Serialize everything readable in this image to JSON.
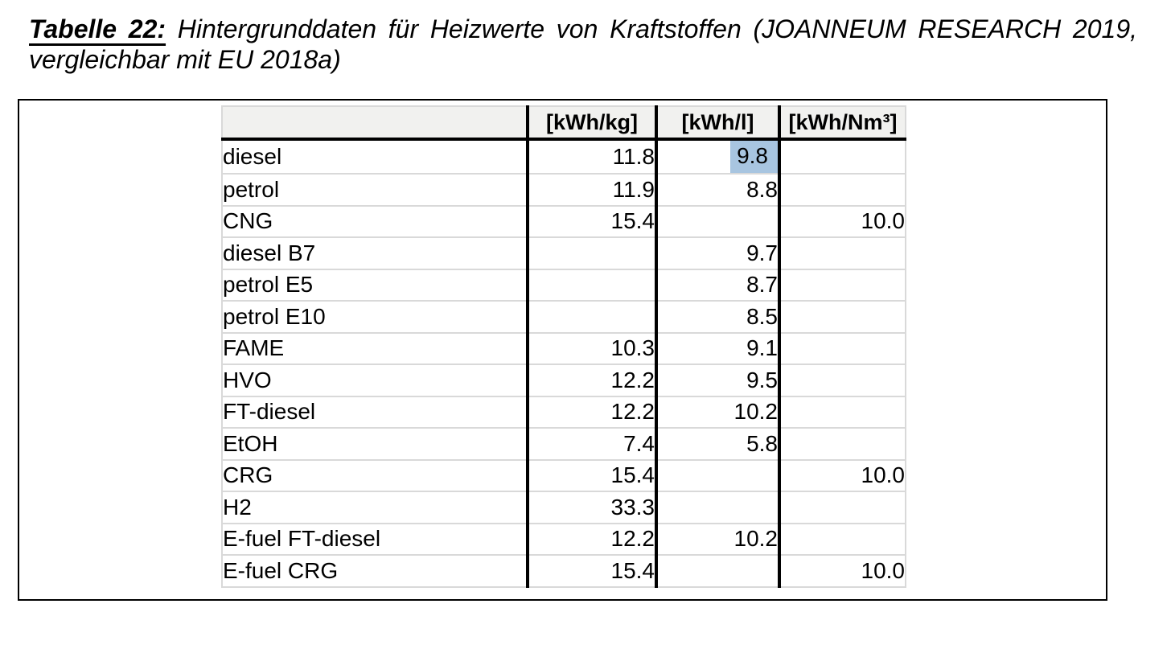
{
  "caption": {
    "label": "Tabelle 22:",
    "line1_rest": "Hintergrunddaten für Heizwerte von Kraftstoffen (JOANNEUM RESEARCH 2019,",
    "line2": "vergleichbar mit EU 2018a)"
  },
  "table": {
    "column_headers": {
      "fuel": "",
      "kwh_per_kg": "[kWh/kg]",
      "kwh_per_l": "[kWh/l]",
      "kwh_per_nm3": "[kWh/Nm³]"
    },
    "rows": [
      {
        "fuel": "diesel",
        "kwh_per_kg": "11.8",
        "kwh_per_l": "9.8",
        "kwh_per_nm3": "",
        "highlight": "kwh_per_l"
      },
      {
        "fuel": "petrol",
        "kwh_per_kg": "11.9",
        "kwh_per_l": "8.8",
        "kwh_per_nm3": ""
      },
      {
        "fuel": "CNG",
        "kwh_per_kg": "15.4",
        "kwh_per_l": "",
        "kwh_per_nm3": "10.0"
      },
      {
        "fuel": "diesel B7",
        "kwh_per_kg": "",
        "kwh_per_l": "9.7",
        "kwh_per_nm3": ""
      },
      {
        "fuel": "petrol E5",
        "kwh_per_kg": "",
        "kwh_per_l": "8.7",
        "kwh_per_nm3": ""
      },
      {
        "fuel": "petrol E10",
        "kwh_per_kg": "",
        "kwh_per_l": "8.5",
        "kwh_per_nm3": ""
      },
      {
        "fuel": "FAME",
        "kwh_per_kg": "10.3",
        "kwh_per_l": "9.1",
        "kwh_per_nm3": ""
      },
      {
        "fuel": "HVO",
        "kwh_per_kg": "12.2",
        "kwh_per_l": "9.5",
        "kwh_per_nm3": ""
      },
      {
        "fuel": "FT-diesel",
        "kwh_per_kg": "12.2",
        "kwh_per_l": "10.2",
        "kwh_per_nm3": ""
      },
      {
        "fuel": "EtOH",
        "kwh_per_kg": "7.4",
        "kwh_per_l": "5.8",
        "kwh_per_nm3": ""
      },
      {
        "fuel": "CRG",
        "kwh_per_kg": "15.4",
        "kwh_per_l": "",
        "kwh_per_nm3": "10.0"
      },
      {
        "fuel": "H2",
        "kwh_per_kg": "33.3",
        "kwh_per_l": "",
        "kwh_per_nm3": ""
      },
      {
        "fuel": "E-fuel FT-diesel",
        "kwh_per_kg": "12.2",
        "kwh_per_l": "10.2",
        "kwh_per_nm3": ""
      },
      {
        "fuel": "E-fuel CRG",
        "kwh_per_kg": "15.4",
        "kwh_per_l": "",
        "kwh_per_nm3": "10.0"
      }
    ],
    "colors": {
      "highlight": "#a8c5e0",
      "header_bg": "#f1f1ef",
      "grid_line": "#d9d9d9",
      "heavy_line": "#000000"
    }
  }
}
